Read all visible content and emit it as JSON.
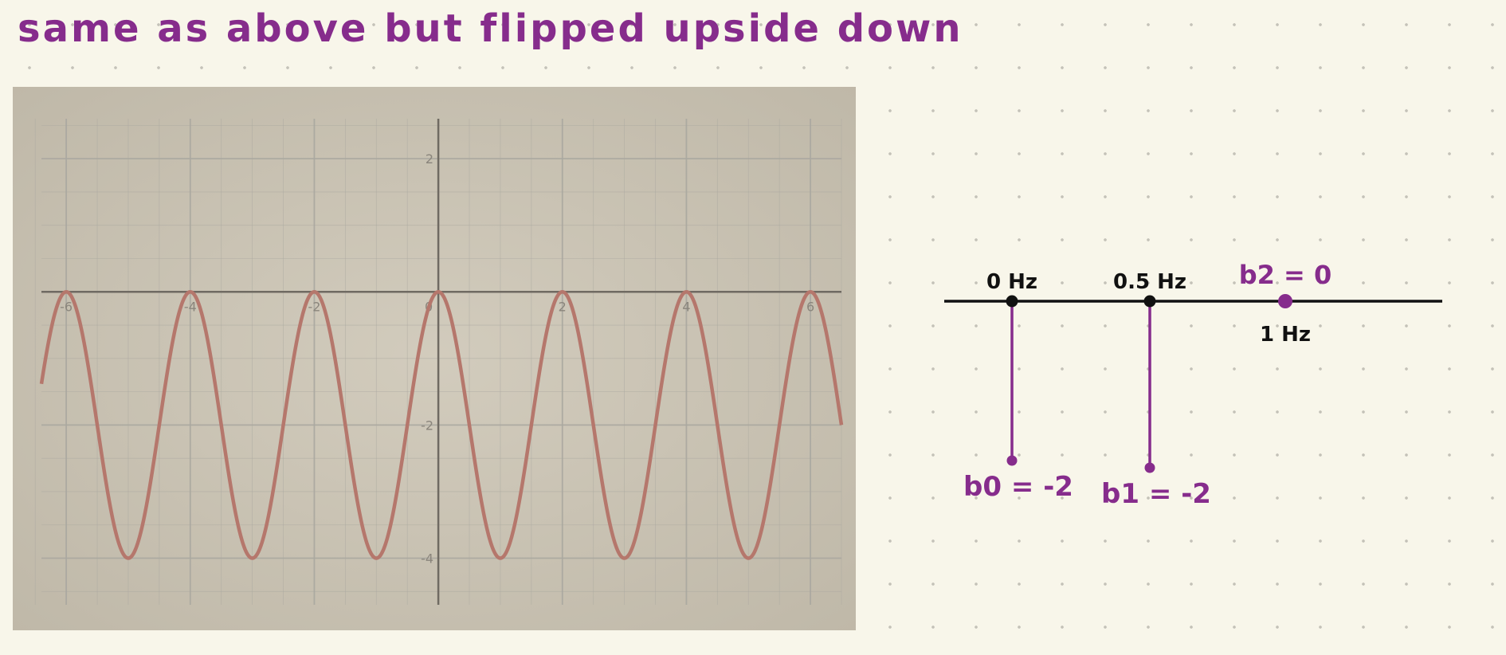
{
  "note": {
    "text": "same as above but flipped upside down"
  },
  "colors": {
    "ink": "#862c8c",
    "curve": "#b5776c",
    "grid": "#aaa8a0",
    "paper": "#c9c2b2",
    "page": "#f8f6ea"
  },
  "chart_data": [
    {
      "type": "line",
      "title": "",
      "xlabel": "",
      "ylabel": "",
      "xlim": [
        -6.4,
        6.5
      ],
      "ylim": [
        -4.7,
        2.6
      ],
      "x_ticks": [
        -6,
        -4,
        -2,
        0,
        2,
        4,
        6
      ],
      "y_ticks": [
        2,
        -2,
        -4
      ],
      "grid": true,
      "function": "y = -2 + 2cos(pi*x)",
      "series": [
        {
          "name": "",
          "peaks_at_y": 0,
          "troughs_at_y": -4,
          "period": 2
        }
      ]
    },
    {
      "type": "stem",
      "categories": [
        "0 Hz",
        "0.5 Hz",
        "1 Hz"
      ],
      "values": [
        -2,
        -2,
        0
      ],
      "labels": [
        "b0 = -2",
        "b1 = -2",
        "b2 = 0"
      ]
    }
  ]
}
